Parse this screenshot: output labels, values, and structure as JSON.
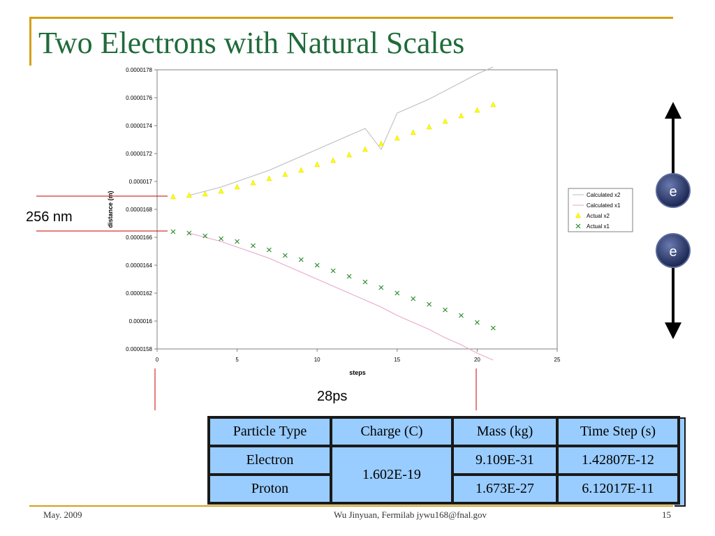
{
  "slide": {
    "title": "Two Electrons with Natural Scales"
  },
  "footer": {
    "date": "May. 2009",
    "author": "Wu Jinyuan, Fermilab jywu168@fnal.gov",
    "page": "15"
  },
  "annotations": {
    "distance_label": "256 nm",
    "time_label": "28ps"
  },
  "particles": {
    "label": "e"
  },
  "colors": {
    "title": "#1f6b3a",
    "rule": "#d4a017",
    "table_fill": "#99ccff",
    "marker_red": "#cc0000",
    "actual_x2": "#ffff00",
    "actual_x1": "#2e8b2e",
    "electron_fill": "#2a3a6a"
  },
  "table": {
    "headers": [
      "Particle Type",
      "Charge (C)",
      "Mass (kg)",
      "Time Step (s)"
    ],
    "rows": [
      {
        "type": "Electron",
        "mass": "9.109E-31",
        "time_step": "1.42807E-12"
      },
      {
        "type": "Proton",
        "mass": "1.673E-27",
        "time_step": "6.12017E-11"
      }
    ],
    "shared_charge": "1.602E-19"
  },
  "chart_data": {
    "type": "scatter",
    "xlabel": "steps",
    "ylabel": "distance (m)",
    "xlim": [
      0,
      25
    ],
    "ylim": [
      1.58e-05,
      1.78e-05
    ],
    "x_ticks": [
      0,
      5,
      10,
      15,
      20,
      25
    ],
    "x_tick_labels": [
      "0",
      "5",
      "10",
      "15",
      "20",
      "25"
    ],
    "y_ticks": [
      1.58e-05,
      1.6e-05,
      1.62e-05,
      1.64e-05,
      1.66e-05,
      1.68e-05,
      1.7e-05,
      1.72e-05,
      1.74e-05,
      1.76e-05,
      1.78e-05
    ],
    "y_tick_labels": [
      "0.0000158",
      "0.000016",
      "0.0000162",
      "0.0000164",
      "0.0000166",
      "0.0000168",
      "0.000017",
      "0.0000172",
      "0.0000174",
      "0.0000176",
      "0.0000178"
    ],
    "grid": false,
    "legend": "right",
    "series": [
      {
        "name": "Calculated x2",
        "kind": "line",
        "color": "#bbbbbb",
        "x": [
          2,
          3,
          4,
          5,
          6,
          7,
          8,
          9,
          10,
          11,
          12,
          13,
          14,
          15,
          16,
          17,
          18,
          19,
          20,
          21
        ],
        "y": [
          1.69e-05,
          1.693e-05,
          1.696e-05,
          1.7e-05,
          1.704e-05,
          1.708e-05,
          1.713e-05,
          1.718e-05,
          1.723e-05,
          1.728e-05,
          1.733e-05,
          1.738e-05,
          1.723e-05,
          1.749e-05,
          1.754e-05,
          1.759e-05,
          1.765e-05,
          1.771e-05,
          1.777e-05,
          1.782e-05
        ]
      },
      {
        "name": "Calculated x1",
        "kind": "line",
        "color": "#e7a6c9",
        "x": [
          2,
          3,
          4,
          5,
          6,
          7,
          8,
          9,
          10,
          11,
          12,
          13,
          14,
          15,
          16,
          17,
          18,
          19,
          20,
          21
        ],
        "y": [
          1.663e-05,
          1.66e-05,
          1.657e-05,
          1.653e-05,
          1.649e-05,
          1.645e-05,
          1.64e-05,
          1.635e-05,
          1.63e-05,
          1.625e-05,
          1.62e-05,
          1.615e-05,
          1.61e-05,
          1.604e-05,
          1.599e-05,
          1.594e-05,
          1.588e-05,
          1.583e-05,
          1.577e-05,
          1.572e-05
        ]
      },
      {
        "name": "Actual x2",
        "kind": "marker",
        "marker": "triangle",
        "color": "#ffff00",
        "x": [
          1,
          2,
          3,
          4,
          5,
          6,
          7,
          8,
          9,
          10,
          11,
          12,
          13,
          14,
          15,
          16,
          17,
          18,
          19,
          20,
          21
        ],
        "y": [
          1.689e-05,
          1.69e-05,
          1.691e-05,
          1.693e-05,
          1.696e-05,
          1.699e-05,
          1.702e-05,
          1.705e-05,
          1.708e-05,
          1.712e-05,
          1.715e-05,
          1.719e-05,
          1.723e-05,
          1.727e-05,
          1.731e-05,
          1.735e-05,
          1.739e-05,
          1.743e-05,
          1.747e-05,
          1.751e-05,
          1.755e-05
        ]
      },
      {
        "name": "Actual x1",
        "kind": "marker",
        "marker": "x",
        "color": "#2e8b2e",
        "x": [
          1,
          2,
          3,
          4,
          5,
          6,
          7,
          8,
          9,
          10,
          11,
          12,
          13,
          14,
          15,
          16,
          17,
          18,
          19,
          20,
          21
        ],
        "y": [
          1.664e-05,
          1.663e-05,
          1.661e-05,
          1.659e-05,
          1.657e-05,
          1.654e-05,
          1.651e-05,
          1.647e-05,
          1.644e-05,
          1.64e-05,
          1.636e-05,
          1.632e-05,
          1.628e-05,
          1.624e-05,
          1.62e-05,
          1.616e-05,
          1.612e-05,
          1.608e-05,
          1.604e-05,
          1.599e-05,
          1.595e-05
        ]
      }
    ]
  }
}
